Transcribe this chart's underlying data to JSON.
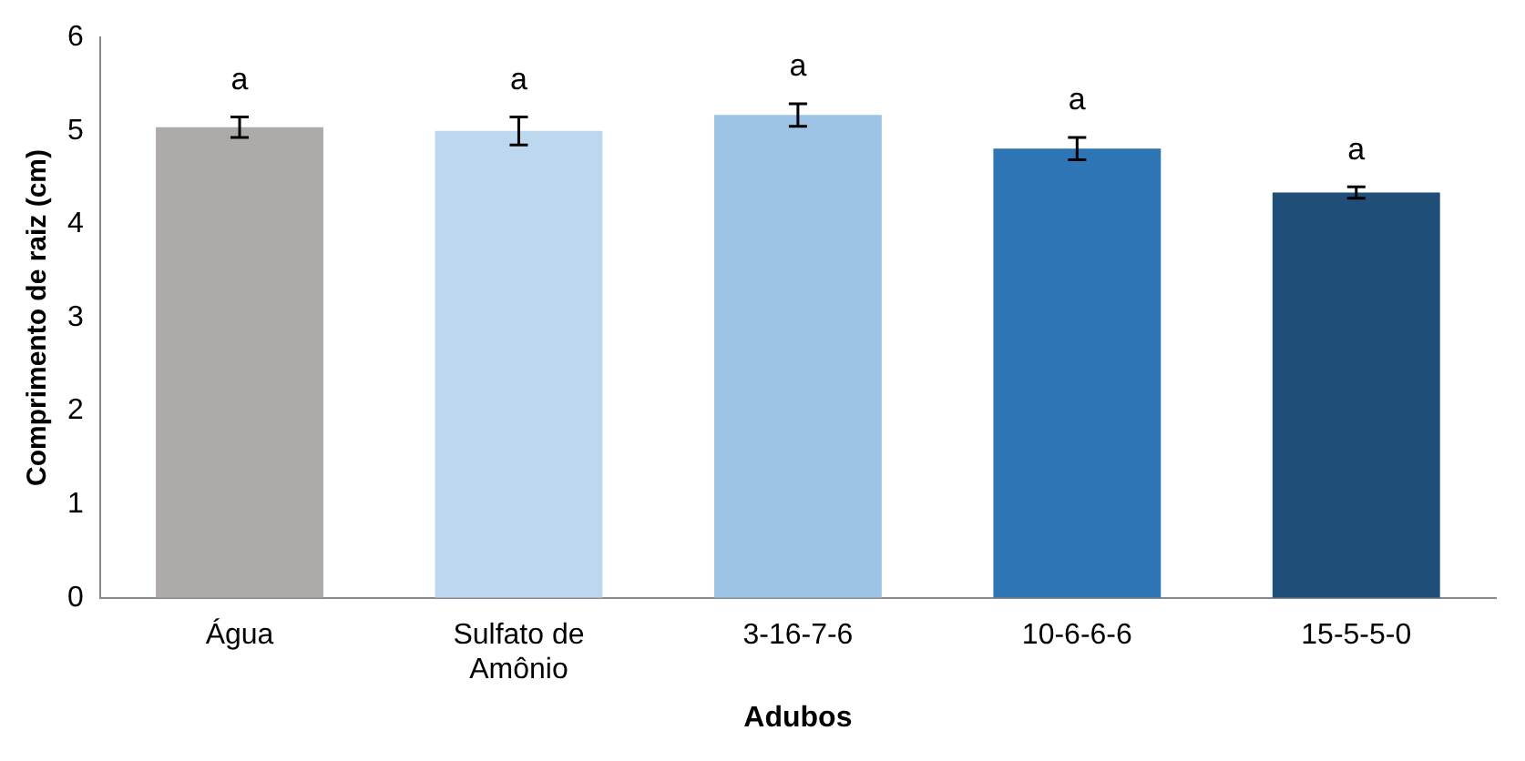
{
  "chart_data": {
    "type": "bar",
    "xlabel": "Adubos",
    "ylabel": "Comprimento de raiz (cm)",
    "categories": [
      "Água",
      "Sulfato de Amônio",
      "3-16-7-6",
      "10-6-6-6",
      "15-5-5-0"
    ],
    "values": [
      5.04,
      5.0,
      5.17,
      4.81,
      4.34
    ],
    "colors": [
      "#aeaaaa",
      "#bdd7ee",
      "#9dc3e6",
      "#2e75b6",
      "#1f4e79"
    ],
    "errors": [
      0.11,
      0.15,
      0.12,
      0.12,
      0.06
    ],
    "ylim": [
      0,
      6
    ],
    "yticks": [
      0,
      1,
      2,
      3,
      4,
      5,
      6
    ],
    "grid": false,
    "legend": false,
    "value_labels": [
      "a",
      "a",
      "a",
      "a",
      "a"
    ]
  }
}
